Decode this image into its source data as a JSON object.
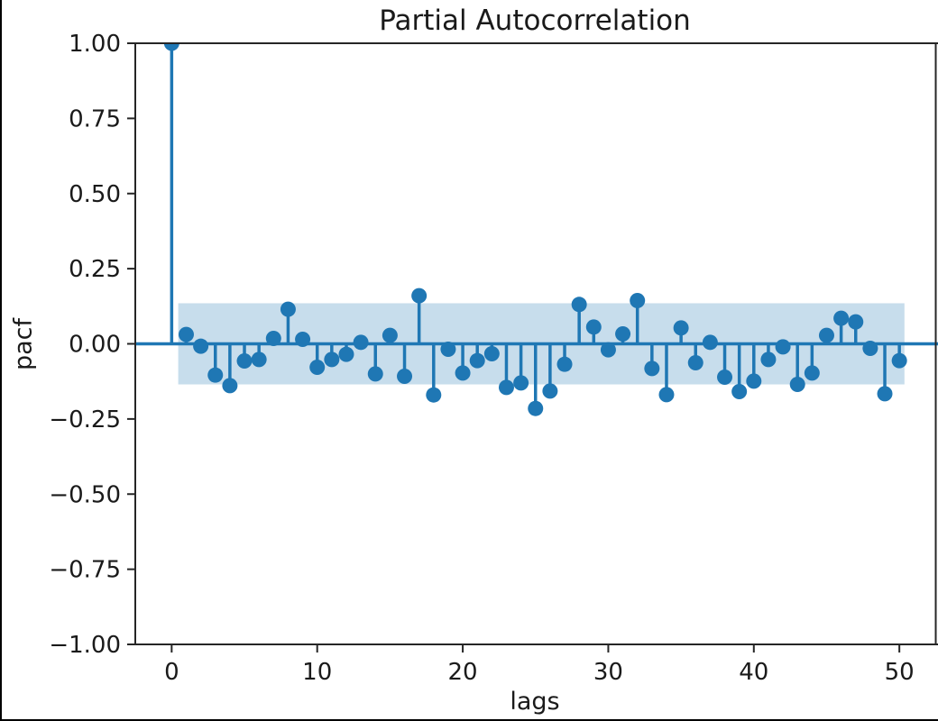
{
  "figure": {
    "title": "Partial Autocorrelation",
    "xlabel": "lags",
    "ylabel": "pacf"
  },
  "chart_data": {
    "type": "stem",
    "title": "Partial Autocorrelation",
    "xlabel": "lags",
    "ylabel": "pacf",
    "xlim": [
      -2.5,
      52.5
    ],
    "ylim": [
      -1.0,
      1.0
    ],
    "grid": false,
    "legend": false,
    "xticks": [
      0,
      10,
      20,
      30,
      40,
      50
    ],
    "xtick_labels": [
      "0",
      "10",
      "20",
      "30",
      "40",
      "50"
    ],
    "yticks": [
      1.0,
      0.75,
      0.5,
      0.25,
      0.0,
      -0.25,
      -0.5,
      -0.75,
      -1.0
    ],
    "ytick_labels": [
      "1.00",
      "0.75",
      "0.50",
      "0.25",
      "0.00",
      "−0.25",
      "−0.50",
      "−0.75",
      "−1.00"
    ],
    "confidence_band": {
      "lower": -0.135,
      "upper": 0.135,
      "x_start": 0.45,
      "x_end": 50.35
    },
    "lags": [
      0,
      1,
      2,
      3,
      4,
      5,
      6,
      7,
      8,
      9,
      10,
      11,
      12,
      13,
      14,
      15,
      16,
      17,
      18,
      19,
      20,
      21,
      22,
      23,
      24,
      25,
      26,
      27,
      28,
      29,
      30,
      31,
      32,
      33,
      34,
      35,
      36,
      37,
      38,
      39,
      40,
      41,
      42,
      43,
      44,
      45,
      46,
      47,
      48,
      49,
      50
    ],
    "pacf": [
      1.0,
      0.031,
      -0.008,
      -0.104,
      -0.139,
      -0.057,
      -0.052,
      0.018,
      0.115,
      0.015,
      -0.078,
      -0.052,
      -0.035,
      0.005,
      -0.1,
      0.028,
      -0.108,
      0.16,
      -0.17,
      -0.018,
      -0.097,
      -0.056,
      -0.033,
      -0.145,
      -0.13,
      -0.215,
      -0.157,
      -0.068,
      0.131,
      0.056,
      -0.02,
      0.033,
      0.144,
      -0.082,
      -0.169,
      0.053,
      -0.063,
      0.005,
      -0.111,
      -0.159,
      -0.124,
      -0.052,
      -0.01,
      -0.135,
      -0.097,
      0.028,
      0.085,
      0.073,
      -0.015,
      -0.166,
      -0.056
    ],
    "colors": {
      "stem": "#1f77b4",
      "marker": "#1f77b4",
      "band": "rgba(31,119,180,0.25)",
      "axis": "#262626",
      "text": "#1a1a1a"
    }
  }
}
